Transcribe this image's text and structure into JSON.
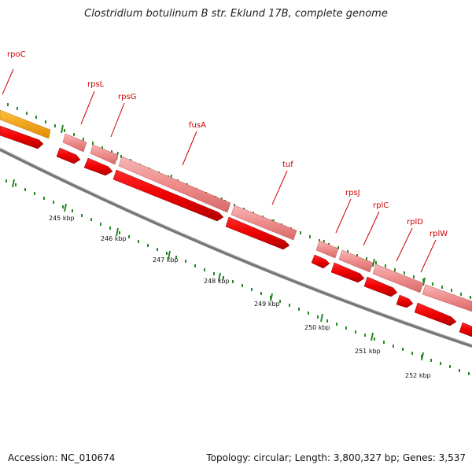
{
  "title": "Clostridium botulinum B str. Eklund 17B, complete genome",
  "footer": {
    "accession": "Accession: NC_010674",
    "stats": "Topology: circular; Length: 3,800,327 bp; Genes: 3,537"
  },
  "genes": [
    {
      "name": "rpoC"
    },
    {
      "name": "rpsL"
    },
    {
      "name": "rpsG"
    },
    {
      "name": "fusA"
    },
    {
      "name": "tuf"
    },
    {
      "name": "rpsJ"
    },
    {
      "name": "rplC"
    },
    {
      "name": "rplD"
    },
    {
      "name": "rplW"
    }
  ],
  "scale": {
    "ticks": [
      "245 kbp",
      "246 kbp",
      "247 kbp",
      "248 kbp",
      "249 kbp",
      "250 kbp",
      "251 kbp",
      "252 kbp"
    ]
  },
  "colors": {
    "cds": "#ee0000",
    "gene": "#f09090",
    "rrna_highlight": "#f0a020",
    "label": "#cc0000",
    "tick": "#2a8a2a",
    "backbone": "#888888"
  }
}
